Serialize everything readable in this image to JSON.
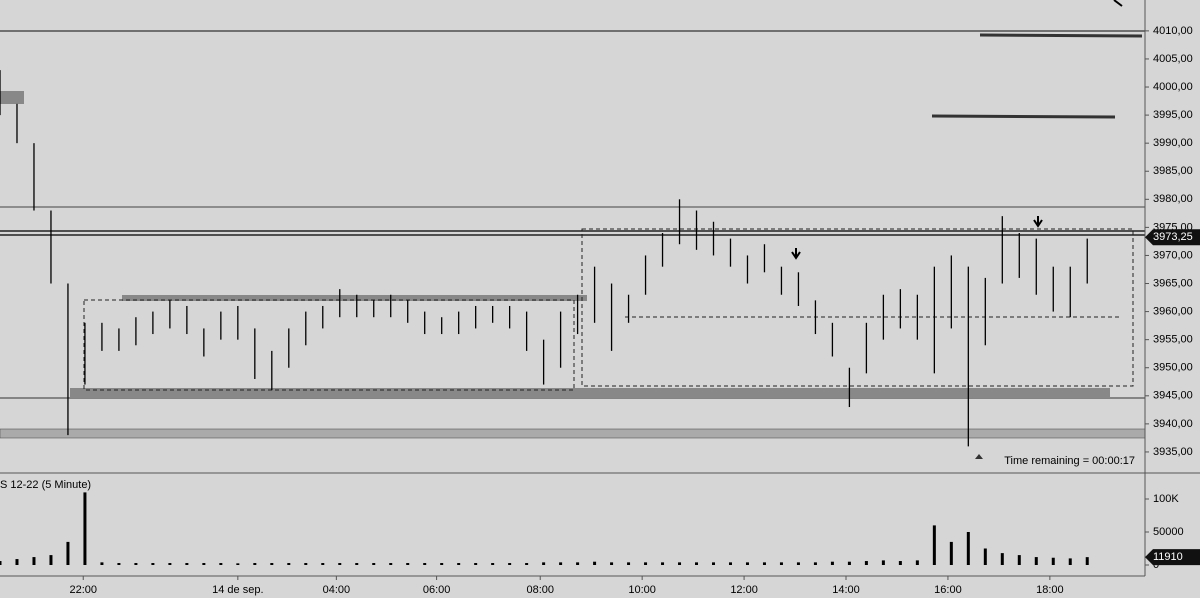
{
  "chart_data": [
    {
      "type": "range-bar",
      "color": "#000000",
      "x": [
        0,
        1,
        2,
        3,
        4,
        5,
        6,
        7,
        8,
        9,
        10,
        11,
        12,
        13,
        14,
        15,
        16,
        17,
        18,
        19,
        20,
        21,
        22,
        23,
        24,
        25,
        26,
        27,
        28,
        29,
        30,
        31,
        32,
        33,
        34,
        35,
        36,
        37,
        38,
        39,
        40,
        41,
        42,
        43,
        44,
        45,
        46,
        47,
        48,
        49,
        50,
        51,
        52,
        53,
        54,
        55,
        56,
        57,
        58,
        59,
        60,
        61,
        62,
        63,
        64
      ],
      "high": [
        4003,
        3997,
        3990,
        3978,
        3965,
        3958,
        3958,
        3957,
        3959,
        3960,
        3962,
        3961,
        3957,
        3960,
        3961,
        3957,
        3953,
        3957,
        3960,
        3961,
        3964,
        3963,
        3962,
        3963,
        3962,
        3960,
        3959,
        3960,
        3961,
        3961,
        3961,
        3960,
        3955,
        3960,
        3963,
        3968,
        3965,
        3963,
        3970,
        3974,
        3980,
        3978,
        3976,
        3973,
        3970,
        3972,
        3968,
        3967,
        3962,
        3958,
        3950,
        3958,
        3963,
        3964,
        3963,
        3968,
        3970,
        3968,
        3966,
        3977,
        3974,
        3973,
        3968,
        3968,
        3973
      ],
      "low": [
        3995,
        3990,
        3978,
        3965,
        3938,
        3947,
        3953,
        3953,
        3954,
        3956,
        3957,
        3956,
        3952,
        3955,
        3955,
        3948,
        3946,
        3950,
        3954,
        3957,
        3959,
        3959,
        3959,
        3959,
        3958,
        3956,
        3956,
        3956,
        3957,
        3958,
        3957,
        3953,
        3947,
        3950,
        3956,
        3958,
        3953,
        3958,
        3963,
        3968,
        3972,
        3971,
        3970,
        3968,
        3965,
        3967,
        3963,
        3961,
        3956,
        3952,
        3943,
        3949,
        3955,
        3957,
        3955,
        3949,
        3957,
        3936,
        3954,
        3965,
        3966,
        3963,
        3960,
        3959,
        3965
      ],
      "xlim": [
        0,
        67.4
      ],
      "ylim": [
        3931.25,
        4015.5
      ],
      "yticks": [
        {
          "value": 3935,
          "label": "3935,00"
        },
        {
          "value": 3940,
          "label": "3940,00"
        },
        {
          "value": 3945,
          "label": "3945,00"
        },
        {
          "value": 3950,
          "label": "3950,00"
        },
        {
          "value": 3955,
          "label": "3955,00"
        },
        {
          "value": 3960,
          "label": "3960,00"
        },
        {
          "value": 3965,
          "label": "3965,00"
        },
        {
          "value": 3970,
          "label": "3970,00"
        },
        {
          "value": 3975,
          "label": "3975,00"
        },
        {
          "value": 3980,
          "label": "3980,00"
        },
        {
          "value": 3985,
          "label": "3985,00"
        },
        {
          "value": 3990,
          "label": "3990,00"
        },
        {
          "value": 3995,
          "label": "3995,00"
        },
        {
          "value": 4000,
          "label": "4000,00"
        },
        {
          "value": 4005,
          "label": "4005,00"
        },
        {
          "value": 4010,
          "label": "4010,00"
        }
      ],
      "last_price": {
        "value": 3973.25,
        "label": "3973,25"
      },
      "annotation": "Time remaining = 00:00:17"
    },
    {
      "type": "bar",
      "title": "S 12-22 (5 Minute)",
      "color": "#000000",
      "x": [
        0,
        1,
        2,
        3,
        4,
        5,
        6,
        7,
        8,
        9,
        10,
        11,
        12,
        13,
        14,
        15,
        16,
        17,
        18,
        19,
        20,
        21,
        22,
        23,
        24,
        25,
        26,
        27,
        28,
        29,
        30,
        31,
        32,
        33,
        34,
        35,
        36,
        37,
        38,
        39,
        40,
        41,
        42,
        43,
        44,
        45,
        46,
        47,
        48,
        49,
        50,
        51,
        52,
        53,
        54,
        55,
        56,
        57,
        58,
        59,
        60,
        61,
        62,
        63,
        64
      ],
      "values": [
        6000,
        9000,
        12000,
        15000,
        35000,
        110000,
        4000,
        3000,
        3000,
        3000,
        3000,
        3000,
        3000,
        3000,
        2500,
        3000,
        3000,
        3000,
        3000,
        3000,
        3000,
        3000,
        3000,
        3000,
        3000,
        3000,
        3000,
        3000,
        3000,
        3000,
        3000,
        3000,
        4000,
        4000,
        4000,
        5000,
        4000,
        4000,
        4000,
        4000,
        4000,
        4000,
        4000,
        4000,
        4000,
        4000,
        4000,
        4000,
        4000,
        5000,
        5000,
        6000,
        7000,
        6000,
        7000,
        60000,
        35000,
        50000,
        25000,
        18000,
        15000,
        12000,
        11000,
        10000,
        11910
      ],
      "xlim": [
        0,
        67.4
      ],
      "ylim": [
        0,
        131800
      ],
      "yticks": [
        0,
        50000,
        {
          "value": 100000,
          "label": "100K"
        }
      ],
      "last_value": 11910,
      "xticks": [
        {
          "value": 4.9,
          "label": "22:00"
        },
        {
          "value": 14.0,
          "label": "14 de sep."
        },
        {
          "value": 19.8,
          "label": "04:00"
        },
        {
          "value": 25.7,
          "label": "06:00"
        },
        {
          "value": 31.8,
          "label": "08:00"
        },
        {
          "value": 37.8,
          "label": "10:00"
        },
        {
          "value": 43.8,
          "label": "12:00"
        },
        {
          "value": 49.8,
          "label": "14:00"
        },
        {
          "value": 55.8,
          "label": "16:00"
        },
        {
          "value": 61.8,
          "label": "18:00"
        }
      ]
    }
  ]
}
